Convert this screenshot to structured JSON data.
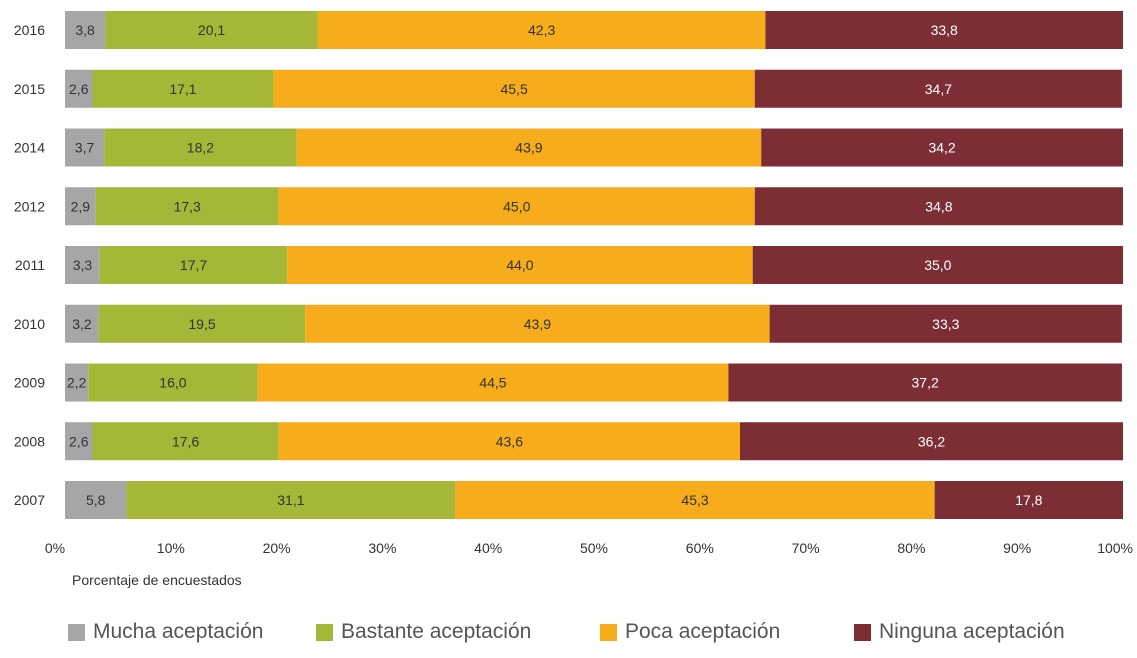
{
  "chart_data": {
    "type": "bar",
    "orientation": "horizontal",
    "stacked": true,
    "categories": [
      "2016",
      "2015",
      "2014",
      "2012",
      "2011",
      "2010",
      "2009",
      "2008",
      "2007"
    ],
    "series": [
      {
        "name": "Mucha aceptación",
        "color": "#a6a6a6",
        "values": [
          3.8,
          2.6,
          3.7,
          2.9,
          3.3,
          3.2,
          2.2,
          2.6,
          5.8
        ],
        "labels": [
          "3,8",
          "2,6",
          "3,7",
          "2,9",
          "3,3",
          "3,2",
          "2,2",
          "2,6",
          "5,8"
        ]
      },
      {
        "name": "Bastante aceptación",
        "color": "#a4b736",
        "values": [
          20.1,
          17.1,
          18.2,
          17.3,
          17.7,
          19.5,
          16.0,
          17.6,
          31.1
        ],
        "labels": [
          "20,1",
          "17,1",
          "18,2",
          "17,3",
          "17,7",
          "19,5",
          "16,0",
          "17,6",
          "31,1"
        ]
      },
      {
        "name": "Poca aceptación",
        "color": "#f7ac1b",
        "values": [
          42.3,
          45.5,
          43.9,
          45.0,
          44.0,
          43.9,
          44.5,
          43.6,
          45.3
        ],
        "labels": [
          "42,3",
          "45,5",
          "43,9",
          "45,0",
          "44,0",
          "43,9",
          "44,5",
          "43,6",
          "45,3"
        ]
      },
      {
        "name": "Ninguna aceptación",
        "color": "#7d2e35",
        "values": [
          33.8,
          34.7,
          34.2,
          34.8,
          35.0,
          33.3,
          37.2,
          36.2,
          17.8
        ],
        "labels": [
          "33,8",
          "34,7",
          "34,2",
          "34,8",
          "35,0",
          "33,3",
          "37,2",
          "36,2",
          "17,8"
        ]
      }
    ],
    "xticks": [
      "0%",
      "10%",
      "20%",
      "30%",
      "40%",
      "50%",
      "60%",
      "70%",
      "80%",
      "90%",
      "100%"
    ],
    "xlim": [
      0,
      100
    ],
    "xlabel": "Porcentaje de encuestados",
    "legend_position": "bottom",
    "grid": false
  }
}
